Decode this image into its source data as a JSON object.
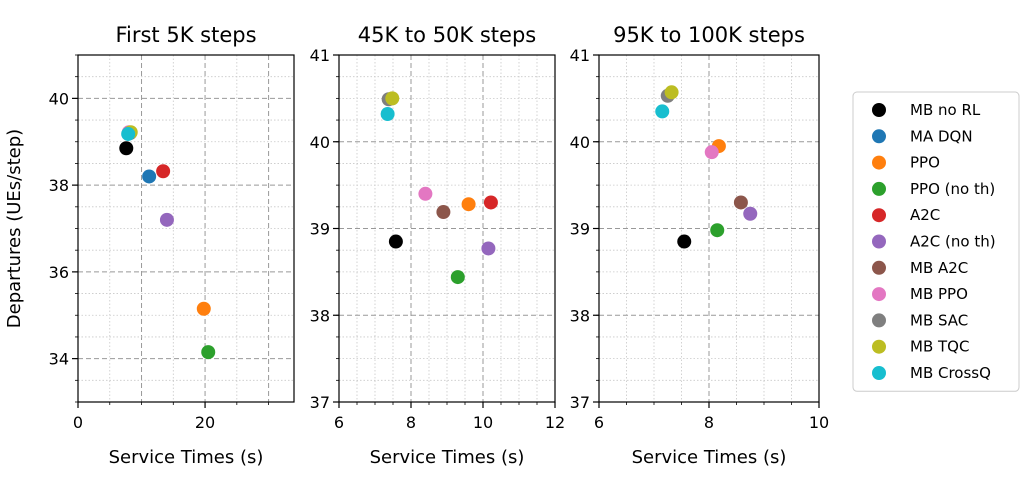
{
  "chart_data": [
    {
      "type": "scatter",
      "title": "First 5K steps",
      "xlabel": "Service Times (s)",
      "ylabel": "Departures (UEs/step)",
      "xlim": [
        0,
        34
      ],
      "ylim": [
        33,
        41
      ],
      "xticks": [
        0,
        20
      ],
      "yticks": [
        34,
        36,
        38,
        40
      ],
      "grid": true,
      "points": [
        {
          "series": "MB no RL",
          "x": 7.6,
          "y": 38.85
        },
        {
          "series": "MA DQN",
          "x": 11.2,
          "y": 38.2
        },
        {
          "series": "PPO",
          "x": 19.8,
          "y": 35.15
        },
        {
          "series": "PPO (no th)",
          "x": 20.5,
          "y": 34.15
        },
        {
          "series": "A2C",
          "x": 13.4,
          "y": 38.32
        },
        {
          "series": "A2C (no th)",
          "x": 14.0,
          "y": 37.2
        },
        {
          "series": "MB A2C",
          "x": 8.2,
          "y": 39.2
        },
        {
          "series": "MB PPO",
          "x": 8.0,
          "y": 39.22
        },
        {
          "series": "MB SAC",
          "x": 8.1,
          "y": 39.2
        },
        {
          "series": "MB TQC",
          "x": 8.3,
          "y": 39.22
        },
        {
          "series": "MB CrossQ",
          "x": 7.9,
          "y": 39.18
        }
      ]
    },
    {
      "type": "scatter",
      "title": "45K to 50K steps",
      "xlabel": "Service Times (s)",
      "ylabel": "",
      "xlim": [
        6,
        12
      ],
      "ylim": [
        37,
        41
      ],
      "xticks": [
        6,
        8,
        10,
        12
      ],
      "yticks": [
        37,
        38,
        39,
        40,
        41
      ],
      "grid": true,
      "points": [
        {
          "series": "MB no RL",
          "x": 7.58,
          "y": 38.85
        },
        {
          "series": "PPO",
          "x": 9.6,
          "y": 39.28
        },
        {
          "series": "PPO (no th)",
          "x": 9.3,
          "y": 38.44
        },
        {
          "series": "A2C",
          "x": 10.22,
          "y": 39.3
        },
        {
          "series": "A2C (no th)",
          "x": 10.15,
          "y": 38.77
        },
        {
          "series": "MB A2C",
          "x": 8.9,
          "y": 39.19
        },
        {
          "series": "MB PPO",
          "x": 8.4,
          "y": 39.4
        },
        {
          "series": "MB SAC",
          "x": 7.38,
          "y": 40.49
        },
        {
          "series": "MB TQC",
          "x": 7.48,
          "y": 40.5
        },
        {
          "series": "MB CrossQ",
          "x": 7.35,
          "y": 40.32
        }
      ]
    },
    {
      "type": "scatter",
      "title": "95K to 100K steps",
      "xlabel": "Service Times (s)",
      "ylabel": "",
      "xlim": [
        6,
        10
      ],
      "ylim": [
        37,
        41
      ],
      "xticks": [
        6,
        8,
        10
      ],
      "yticks": [
        37,
        38,
        39,
        40,
        41
      ],
      "grid": true,
      "points": [
        {
          "series": "MB no RL",
          "x": 7.55,
          "y": 38.85
        },
        {
          "series": "PPO",
          "x": 8.18,
          "y": 39.95
        },
        {
          "series": "PPO (no th)",
          "x": 8.15,
          "y": 38.98
        },
        {
          "series": "A2C (no th)",
          "x": 8.75,
          "y": 39.17
        },
        {
          "series": "MB A2C",
          "x": 8.58,
          "y": 39.3
        },
        {
          "series": "MB PPO",
          "x": 8.05,
          "y": 39.88
        },
        {
          "series": "MB SAC",
          "x": 7.25,
          "y": 40.53
        },
        {
          "series": "MB TQC",
          "x": 7.32,
          "y": 40.57
        },
        {
          "series": "MB CrossQ",
          "x": 7.15,
          "y": 40.35
        }
      ]
    }
  ],
  "legend": {
    "placement": "right",
    "entries": [
      {
        "name": "MB no RL",
        "color": "#000000"
      },
      {
        "name": "MA DQN",
        "color": "#1f77b4"
      },
      {
        "name": "PPO",
        "color": "#ff7f0e"
      },
      {
        "name": "PPO (no th)",
        "color": "#2ca02c"
      },
      {
        "name": "A2C",
        "color": "#d62728"
      },
      {
        "name": "A2C (no th)",
        "color": "#9467bd"
      },
      {
        "name": "MB A2C",
        "color": "#8c564b"
      },
      {
        "name": "MB PPO",
        "color": "#e377c2"
      },
      {
        "name": "MB SAC",
        "color": "#7f7f7f"
      },
      {
        "name": "MB TQC",
        "color": "#bcbd22"
      },
      {
        "name": "MB CrossQ",
        "color": "#17becf"
      }
    ]
  }
}
